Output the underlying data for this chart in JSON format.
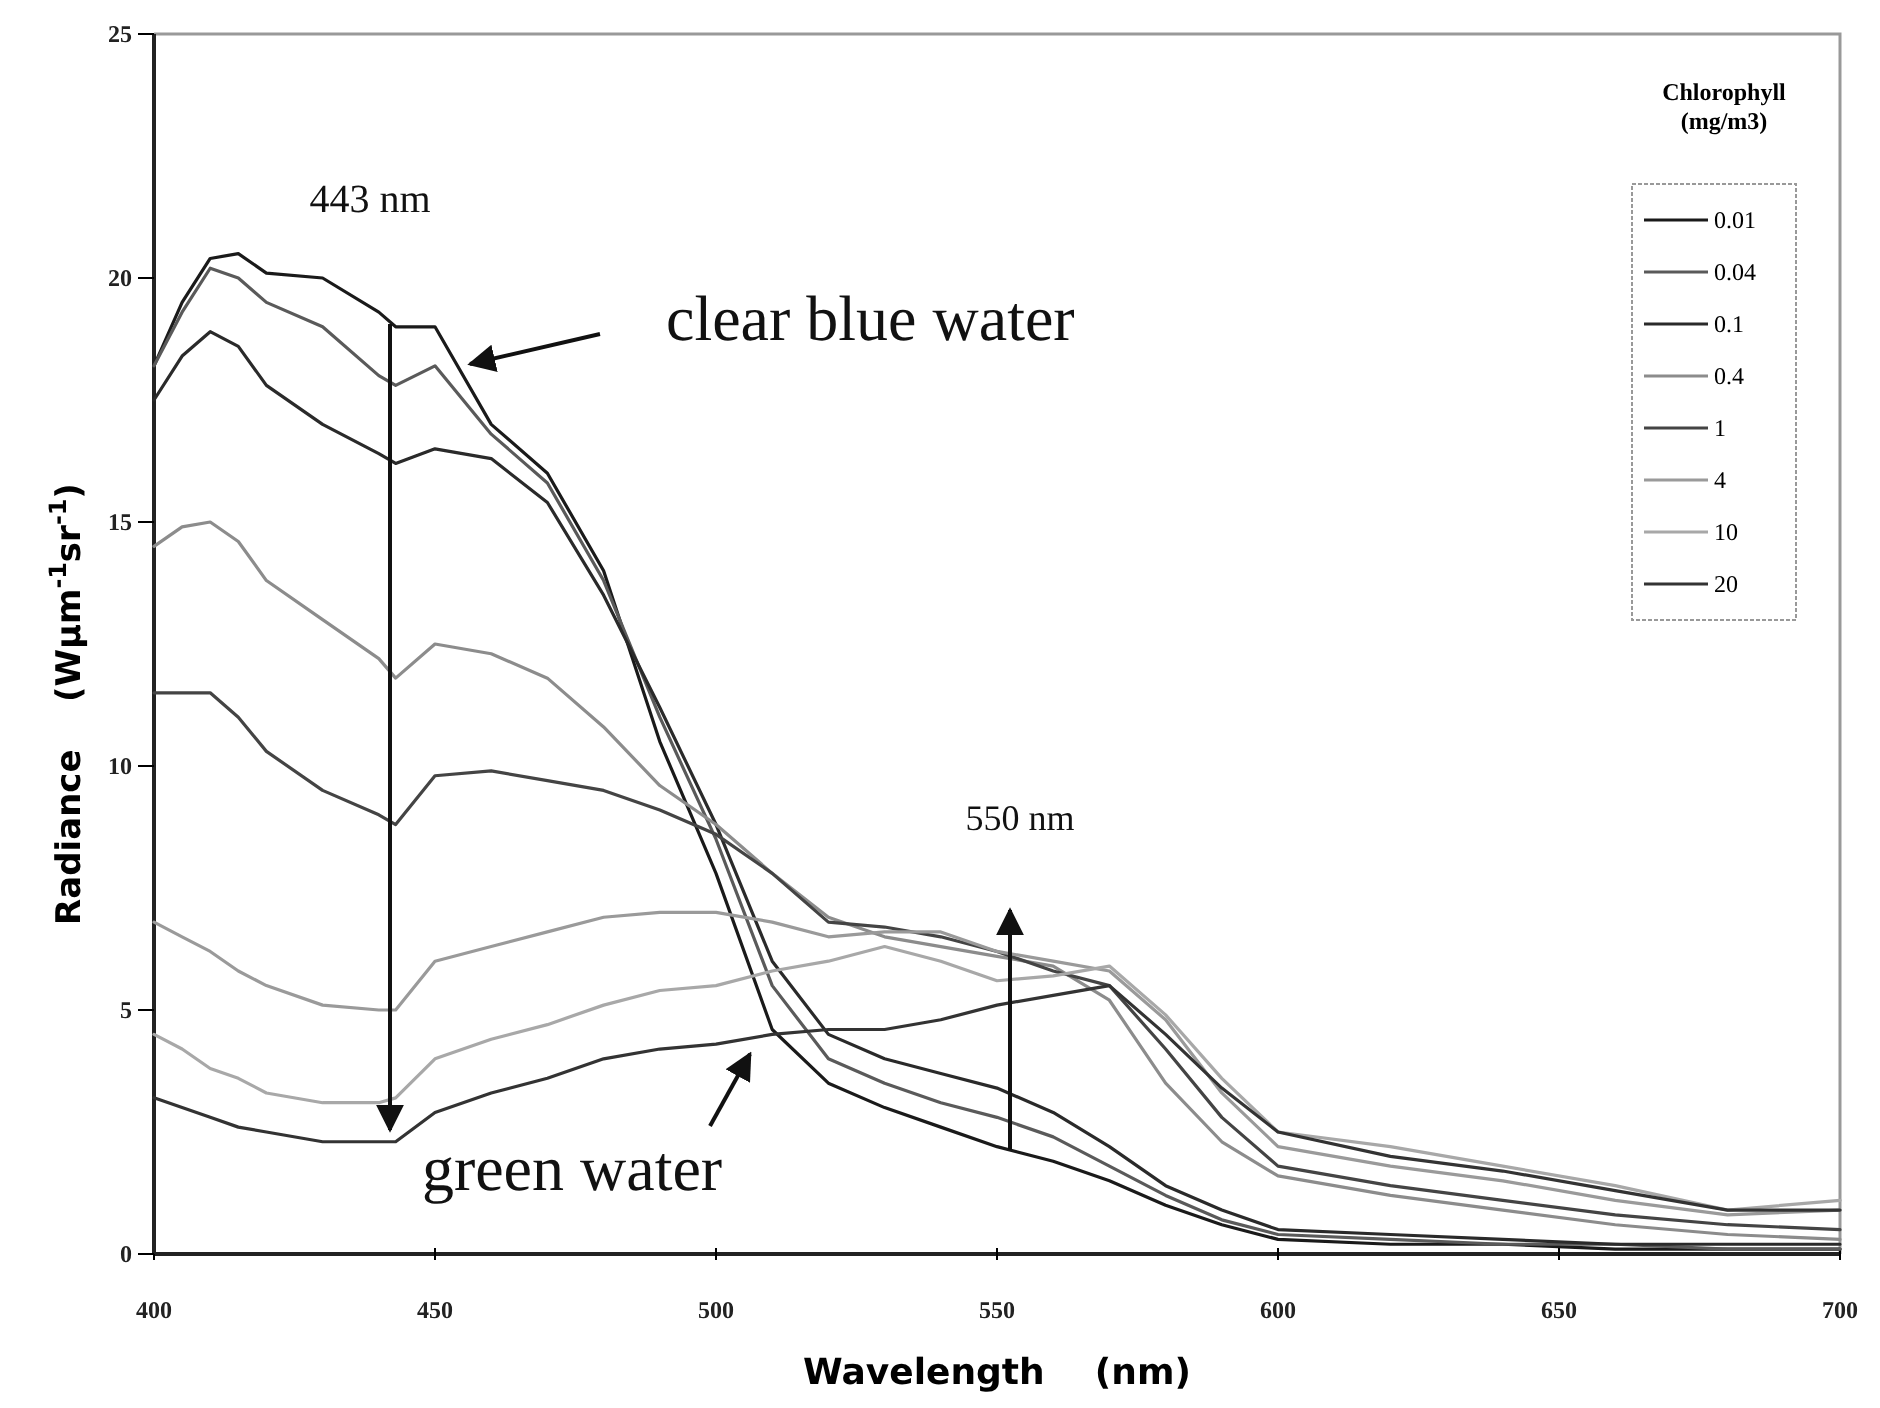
{
  "chart_data": {
    "type": "line",
    "xlabel": "Wavelength    (nm)",
    "ylabel": "Radiance    (Wμm$^{-1}$sr$^{-1}$)",
    "legend_title": "Chlorophyll (mg/m3)",
    "legend": "top right",
    "grid": false,
    "marker": "none",
    "line_style": "solid",
    "xlim": [
      400,
      700
    ],
    "xticks": [
      400,
      450,
      500,
      550,
      600,
      650,
      700
    ],
    "ylim": [
      0,
      25
    ],
    "yticks": [
      0,
      5,
      10,
      15,
      20,
      25
    ],
    "x": [
      400,
      405,
      410,
      415,
      420,
      430,
      440,
      443,
      450,
      460,
      470,
      480,
      490,
      500,
      510,
      520,
      530,
      540,
      550,
      560,
      570,
      580,
      590,
      600,
      620,
      640,
      660,
      680,
      700
    ],
    "series": [
      {
        "name": "0.01",
        "color": "#1a1a1a",
        "values": [
          18.2,
          19.5,
          20.4,
          20.5,
          20.1,
          20.0,
          19.3,
          19.0,
          19.0,
          17.0,
          16.0,
          14.0,
          10.5,
          7.8,
          4.6,
          3.5,
          3.0,
          2.6,
          2.2,
          1.9,
          1.5,
          1.0,
          0.6,
          0.3,
          0.2,
          0.2,
          0.1,
          0.1,
          0.1
        ]
      },
      {
        "name": "0.04",
        "color": "#5a5a5a",
        "values": [
          18.2,
          19.3,
          20.2,
          20.0,
          19.5,
          19.0,
          18.0,
          17.8,
          18.2,
          16.8,
          15.8,
          13.8,
          11.0,
          8.5,
          5.5,
          4.0,
          3.5,
          3.1,
          2.8,
          2.4,
          1.8,
          1.2,
          0.7,
          0.4,
          0.3,
          0.2,
          0.2,
          0.1,
          0.1
        ]
      },
      {
        "name": "0.1",
        "color": "#2a2a2a",
        "values": [
          17.5,
          18.4,
          18.9,
          18.6,
          17.8,
          17.0,
          16.4,
          16.2,
          16.5,
          16.3,
          15.4,
          13.5,
          11.2,
          8.8,
          6.0,
          4.5,
          4.0,
          3.7,
          3.4,
          2.9,
          2.2,
          1.4,
          0.9,
          0.5,
          0.4,
          0.3,
          0.2,
          0.2,
          0.2
        ]
      },
      {
        "name": "0.4",
        "color": "#8c8c8c",
        "values": [
          14.5,
          14.9,
          15.0,
          14.6,
          13.8,
          13.0,
          12.2,
          11.8,
          12.5,
          12.3,
          11.8,
          10.8,
          9.6,
          8.8,
          7.8,
          6.9,
          6.5,
          6.3,
          6.1,
          5.9,
          5.2,
          3.5,
          2.3,
          1.6,
          1.2,
          0.9,
          0.6,
          0.4,
          0.3
        ]
      },
      {
        "name": "1",
        "color": "#444444",
        "values": [
          11.5,
          11.5,
          11.5,
          11.0,
          10.3,
          9.5,
          9.0,
          8.8,
          9.8,
          9.9,
          9.7,
          9.5,
          9.1,
          8.6,
          7.8,
          6.8,
          6.7,
          6.5,
          6.2,
          5.8,
          5.5,
          4.2,
          2.8,
          1.8,
          1.4,
          1.1,
          0.8,
          0.6,
          0.5
        ]
      },
      {
        "name": "4",
        "color": "#9a9a9a",
        "values": [
          6.8,
          6.5,
          6.2,
          5.8,
          5.5,
          5.1,
          5.0,
          5.0,
          6.0,
          6.3,
          6.6,
          6.9,
          7.0,
          7.0,
          6.8,
          6.5,
          6.6,
          6.6,
          6.2,
          6.0,
          5.8,
          4.8,
          3.3,
          2.2,
          1.8,
          1.5,
          1.1,
          0.8,
          0.9
        ]
      },
      {
        "name": "10",
        "color": "#a8a8a8",
        "values": [
          4.5,
          4.2,
          3.8,
          3.6,
          3.3,
          3.1,
          3.1,
          3.2,
          4.0,
          4.4,
          4.7,
          5.1,
          5.4,
          5.5,
          5.8,
          6.0,
          6.3,
          6.0,
          5.6,
          5.7,
          5.9,
          4.9,
          3.6,
          2.5,
          2.2,
          1.8,
          1.4,
          0.9,
          1.1
        ]
      },
      {
        "name": "20",
        "color": "#333333",
        "values": [
          3.2,
          3.0,
          2.8,
          2.6,
          2.5,
          2.3,
          2.3,
          2.3,
          2.9,
          3.3,
          3.6,
          4.0,
          4.2,
          4.3,
          4.5,
          4.6,
          4.6,
          4.8,
          5.1,
          5.3,
          5.5,
          4.5,
          3.4,
          2.5,
          2.0,
          1.7,
          1.3,
          0.9,
          0.9
        ]
      }
    ],
    "annotations": [
      "443 nm",
      "550 nm",
      "clear blue water",
      "green water"
    ]
  }
}
